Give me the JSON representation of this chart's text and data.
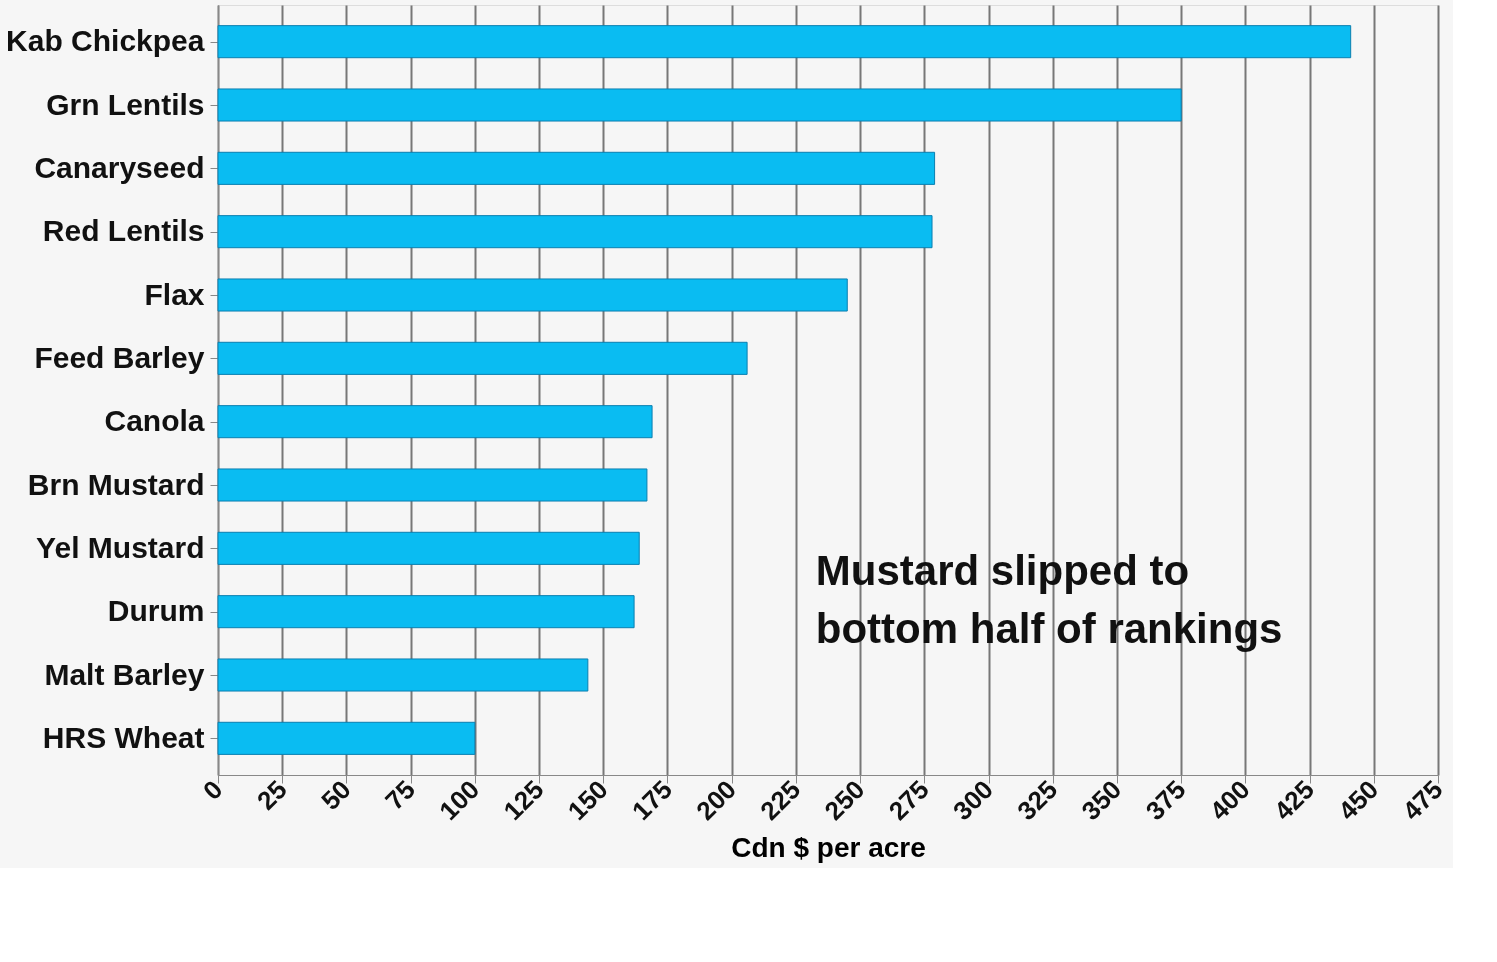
{
  "chart_data": {
    "type": "bar",
    "orientation": "horizontal",
    "xlabel": "Cdn $ per acre",
    "categories": [
      "Kab Chickpea",
      "Grn Lentils",
      "Canaryseed",
      "Red Lentils",
      "Flax",
      "Feed Barley",
      "Canola",
      "Brn Mustard",
      "Yel Mustard",
      "Durum",
      "Malt Barley",
      "HRS Wheat"
    ],
    "values": [
      441,
      375,
      279,
      278,
      245,
      206,
      169,
      167,
      164,
      162,
      144,
      100
    ],
    "color": "#0abcf2",
    "xlim": [
      0,
      475
    ],
    "xticks": [
      0,
      25,
      50,
      75,
      100,
      125,
      150,
      175,
      200,
      225,
      250,
      275,
      300,
      325,
      350,
      375,
      400,
      425,
      450,
      475
    ],
    "grid": "x",
    "annotations": [
      "Mustard slipped to\nbottom half of rankings"
    ]
  }
}
